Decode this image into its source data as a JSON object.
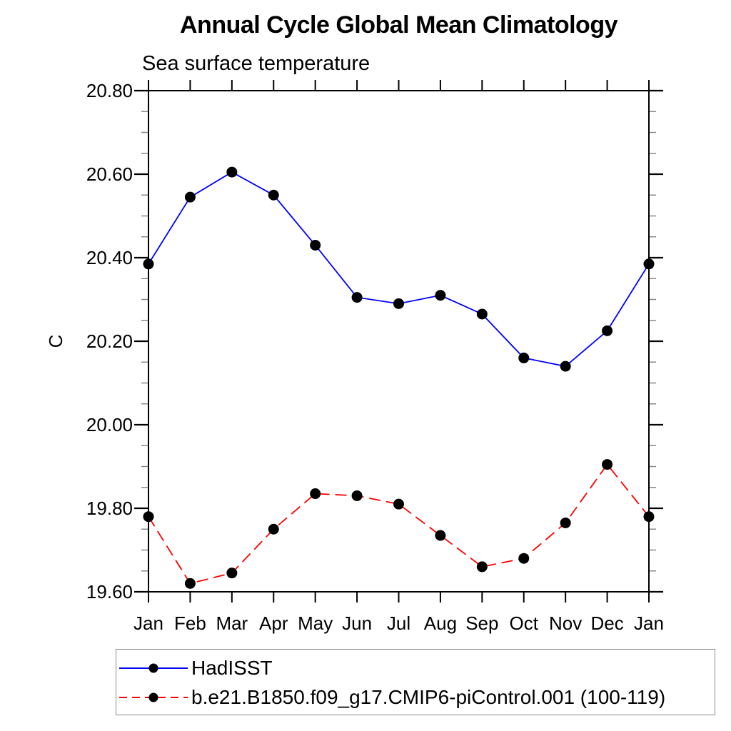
{
  "chart_data": {
    "type": "line",
    "title": "Annual Cycle Global Mean Climatology",
    "subtitle": "Sea surface temperature",
    "ylabel": "C",
    "xlabel": "",
    "categories": [
      "Jan",
      "Feb",
      "Mar",
      "Apr",
      "May",
      "Jun",
      "Jul",
      "Aug",
      "Sep",
      "Oct",
      "Nov",
      "Dec",
      "Jan"
    ],
    "series": [
      {
        "name": "HadISST",
        "line_color": "#0000ff",
        "line_style": "solid",
        "marker": "filled-circle",
        "marker_color": "#000000",
        "values": [
          20.385,
          20.545,
          20.605,
          20.55,
          20.43,
          20.305,
          20.29,
          20.31,
          20.265,
          20.16,
          20.14,
          20.225,
          20.385
        ]
      },
      {
        "name": "b.e21.B1850.f09_g17.CMIP6-piControl.001 (100-119)",
        "line_color": "#ff0000",
        "line_style": "dashed",
        "marker": "filled-circle",
        "marker_color": "#000000",
        "values": [
          19.78,
          19.62,
          19.645,
          19.75,
          19.835,
          19.83,
          19.81,
          19.735,
          19.66,
          19.68,
          19.765,
          19.905,
          19.78
        ]
      }
    ],
    "ylim": [
      19.6,
      20.8
    ],
    "yticks": [
      {
        "value": 19.6,
        "label": "19.60"
      },
      {
        "value": 19.8,
        "label": "19.80"
      },
      {
        "value": 20.0,
        "label": "20.00"
      },
      {
        "value": 20.2,
        "label": "20.20"
      },
      {
        "value": 20.4,
        "label": "20.40"
      },
      {
        "value": 20.6,
        "label": "20.60"
      },
      {
        "value": 20.8,
        "label": "20.80"
      }
    ],
    "ytick_minor_step": 0.05,
    "grid": false,
    "legend_position": "bottom-left-box",
    "axis_color": "#000000",
    "minor_tick_color": "#888888",
    "background_color": "#ffffff"
  }
}
